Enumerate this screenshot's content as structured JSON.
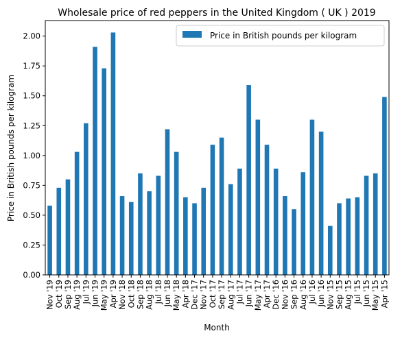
{
  "chart_data": {
    "type": "bar",
    "title": "Wholesale price of red peppers in the United Kingdom ( UK ) 2019",
    "xlabel": "Month",
    "ylabel": "Price in British pounds per kilogram",
    "ylim": [
      0,
      2.13
    ],
    "yticks": [
      "0.00",
      "0.25",
      "0.50",
      "0.75",
      "1.00",
      "1.25",
      "1.50",
      "1.75",
      "2.00"
    ],
    "legend_position": "top-right",
    "grid": false,
    "bar_color": "#1f77b4",
    "categories": [
      "Nov '19",
      "Oct '19",
      "Sep '19",
      "Aug '19",
      "Jul '19",
      "Jun '19",
      "May '19",
      "Apr '19",
      "Nov '18",
      "Oct '18",
      "Sep '18",
      "Aug '18",
      "Jul '18",
      "Jun '18",
      "May '18",
      "Apr '18",
      "Dec '17",
      "Nov '17",
      "Oct '17",
      "Sep '17",
      "Aug '17",
      "Jul '17",
      "Jun '17",
      "May '17",
      "Apr '17",
      "Dec '16",
      "Nov '16",
      "Sep '16",
      "Aug '16",
      "Jul '16",
      "Jun '16",
      "Nov '15",
      "Sep '15",
      "Aug '15",
      "Jul '15",
      "Jun '15",
      "May '15",
      "Apr '15"
    ],
    "series": [
      {
        "name": "Price in British pounds per kilogram",
        "values": [
          0.58,
          0.73,
          0.8,
          1.03,
          1.27,
          1.91,
          1.73,
          2.03,
          0.66,
          0.61,
          0.85,
          0.7,
          0.83,
          1.22,
          1.03,
          0.65,
          0.6,
          0.73,
          1.09,
          1.15,
          0.76,
          0.89,
          1.59,
          1.3,
          1.09,
          0.89,
          0.66,
          0.55,
          0.86,
          1.3,
          1.2,
          0.41,
          0.6,
          0.64,
          0.65,
          0.83,
          0.85,
          1.49
        ]
      }
    ]
  }
}
